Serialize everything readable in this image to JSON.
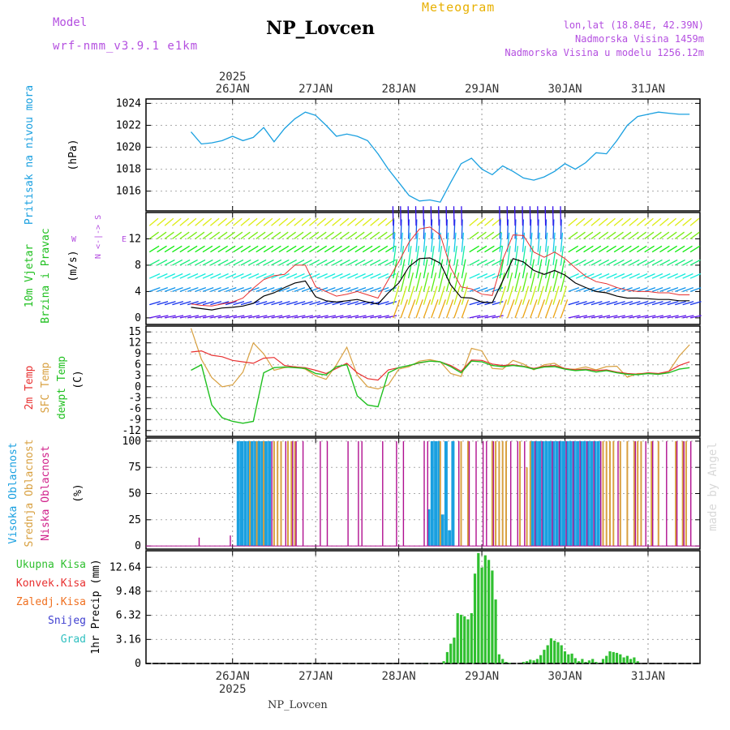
{
  "header": {
    "model_label": "Model",
    "model_name": "wrf-nmm_v3.9.1 e1km",
    "title": "NP_Lovcen",
    "subtitle": "Meteogram",
    "lonlat": "lon,lat (18.84E, 42.39N)",
    "altitude": "Nadmorska Visina 1459m",
    "model_altitude": "Nadmorska Visina u modelu 1256.12m",
    "footer_station": "NP_Lovcen",
    "credit": "made by Angel"
  },
  "colors": {
    "magenta": "#b44fe0",
    "orange": "#e8b000",
    "pressure": "#1aa0e0",
    "t2m": "#e83030",
    "sfc": "#d8a040",
    "dew": "#20c020",
    "precip": "#30c030",
    "axis": "#000000"
  },
  "chart_data": [
    {
      "type": "line",
      "ylabel": "Pritisak na nivou mora",
      "unit": "(hPa)",
      "yticks": [
        1016,
        1018,
        1020,
        1022,
        1024
      ],
      "ylim": [
        1014.2,
        1024.4
      ],
      "x_top_labels": [
        "26JAN",
        "27JAN",
        "28JAN",
        "29JAN",
        "30JAN",
        "31JAN"
      ],
      "year_label": "2025",
      "series": [
        {
          "hours": [
            0,
            3,
            6,
            9,
            12,
            15,
            18,
            21,
            24,
            27,
            30,
            33,
            36,
            39,
            42,
            45,
            48,
            51,
            54,
            57,
            60,
            63,
            66,
            69,
            72,
            75,
            78,
            81,
            84,
            87,
            90,
            93,
            96,
            99,
            102,
            105,
            108,
            111,
            114,
            117,
            120,
            123,
            126,
            129,
            132,
            135,
            138,
            141,
            144
          ],
          "values": [
            1021.4,
            1020.3,
            1020.4,
            1020.6,
            1021.0,
            1020.6,
            1020.9,
            1021.8,
            1020.5,
            1021.7,
            1022.6,
            1023.2,
            1022.9,
            1022.0,
            1021.0,
            1021.2,
            1021.0,
            1020.6,
            1019.4,
            1018.0,
            1016.8,
            1015.6,
            1015.1,
            1015.2,
            1015.0,
            1016.8,
            1018.5,
            1019.0,
            1018.0,
            1017.5,
            1018.3,
            1017.8,
            1017.2,
            1017.0,
            1017.3,
            1017.8,
            1018.5,
            1018.0,
            1018.6,
            1019.5,
            1019.4,
            1020.6,
            1022.0,
            1022.8,
            1023.0,
            1023.2,
            1023.1,
            1023.0,
            1023.0
          ]
        }
      ]
    },
    {
      "type": "line",
      "title": "10m Vjetar Brzina i Pravac",
      "ylabel_parts": [
        "10m Vjetar",
        "Brzina i Pravac"
      ],
      "unit": "(m/s)",
      "yticks": [
        0,
        4,
        8,
        12
      ],
      "ylim": [
        -1,
        16
      ],
      "direction_legend": "N <-|-> S",
      "direction_ends": [
        "W",
        "E"
      ],
      "series": [
        {
          "name": "mean",
          "hours": [
            0,
            3,
            6,
            9,
            12,
            15,
            18,
            21,
            24,
            27,
            30,
            33,
            36,
            39,
            42,
            45,
            48,
            51,
            54,
            57,
            60,
            63,
            66,
            69,
            72,
            75,
            78,
            81,
            84,
            87,
            90,
            93,
            96,
            99,
            102,
            105,
            108,
            111,
            114,
            117,
            120,
            123,
            126,
            129,
            132,
            135,
            138,
            141,
            144
          ],
          "values": [
            1.6,
            1.4,
            1.2,
            1.5,
            1.6,
            1.8,
            2.2,
            3.3,
            3.8,
            4.6,
            5.3,
            5.6,
            3.2,
            2.6,
            2.4,
            2.6,
            2.8,
            2.4,
            2.1,
            3.8,
            5.3,
            7.8,
            9.0,
            9.1,
            8.3,
            5.0,
            3.1,
            3.0,
            2.4,
            2.3,
            5.6,
            9.0,
            8.5,
            7.2,
            6.6,
            7.2,
            6.5,
            5.3,
            4.6,
            4.0,
            3.8,
            3.3,
            3.0,
            3.0,
            2.9,
            2.8,
            2.8,
            2.6,
            2.6
          ]
        },
        {
          "name": "gust",
          "hours": [
            0,
            3,
            6,
            9,
            12,
            15,
            18,
            21,
            24,
            27,
            30,
            33,
            36,
            39,
            42,
            45,
            48,
            51,
            54,
            57,
            60,
            63,
            66,
            69,
            72,
            75,
            78,
            81,
            84,
            87,
            90,
            93,
            96,
            99,
            102,
            105,
            108,
            111,
            114,
            117,
            120,
            123,
            126,
            129,
            132,
            135,
            138,
            141,
            144
          ],
          "values": [
            2.1,
            1.9,
            1.8,
            2.1,
            2.4,
            3.0,
            4.5,
            5.8,
            6.4,
            6.6,
            8.0,
            8.0,
            4.7,
            4.0,
            3.3,
            3.6,
            4.0,
            3.5,
            3.0,
            5.8,
            8.5,
            11.5,
            13.5,
            13.8,
            12.6,
            7.6,
            4.7,
            4.4,
            3.6,
            3.4,
            8.8,
            12.6,
            12.5,
            10.0,
            9.2,
            10.0,
            9.0,
            7.6,
            6.3,
            5.5,
            5.2,
            4.6,
            4.2,
            4.0,
            4.0,
            3.8,
            3.8,
            3.5,
            3.5
          ]
        }
      ]
    },
    {
      "type": "line",
      "ylabel_parts": [
        "2m Temp",
        "SFC Temp",
        "dewpt Temp"
      ],
      "unit": "(C)",
      "yticks": [
        -12,
        -9,
        -6,
        -3,
        0,
        3,
        6,
        9,
        12,
        15
      ],
      "ylim": [
        -13.6,
        16.6
      ],
      "series": [
        {
          "name": "2m Temp",
          "hours": [
            0,
            3,
            6,
            9,
            12,
            15,
            18,
            21,
            24,
            27,
            30,
            33,
            36,
            39,
            42,
            45,
            48,
            51,
            54,
            57,
            60,
            63,
            66,
            69,
            72,
            75,
            78,
            81,
            84,
            87,
            90,
            93,
            96,
            99,
            102,
            105,
            108,
            111,
            114,
            117,
            120,
            123,
            126,
            129,
            132,
            135,
            138,
            141,
            144
          ],
          "values": [
            9.5,
            9.8,
            8.6,
            8.2,
            7.2,
            6.8,
            6.4,
            7.8,
            8.0,
            5.8,
            5.4,
            5.2,
            4.5,
            3.6,
            5.0,
            6.4,
            3.8,
            2.2,
            1.8,
            4.6,
            5.2,
            5.8,
            6.5,
            7.0,
            6.8,
            5.8,
            4.2,
            7.3,
            7.2,
            6.2,
            5.8,
            6.0,
            5.6,
            5.0,
            5.6,
            5.8,
            5.0,
            4.6,
            4.8,
            4.4,
            4.6,
            4.0,
            3.6,
            3.4,
            3.8,
            3.6,
            4.2,
            5.8,
            6.8
          ]
        },
        {
          "name": "SFC Temp",
          "hours": [
            0,
            3,
            6,
            9,
            12,
            15,
            18,
            21,
            24,
            27,
            30,
            33,
            36,
            39,
            42,
            45,
            48,
            51,
            54,
            57,
            60,
            63,
            66,
            69,
            72,
            75,
            78,
            81,
            84,
            87,
            90,
            93,
            96,
            99,
            102,
            105,
            108,
            111,
            114,
            117,
            120,
            123,
            126,
            129,
            132,
            135,
            138,
            141,
            144
          ],
          "values": [
            16.0,
            7.5,
            2.5,
            0.0,
            0.5,
            4.0,
            12.0,
            9.0,
            4.5,
            5.2,
            5.5,
            4.8,
            3.0,
            2.0,
            6.0,
            10.8,
            3.2,
            0.0,
            -0.6,
            0.5,
            4.8,
            5.5,
            7.0,
            7.4,
            6.8,
            3.6,
            2.8,
            10.5,
            9.8,
            5.0,
            4.8,
            7.2,
            6.2,
            4.6,
            6.0,
            6.4,
            4.8,
            4.8,
            5.4,
            4.6,
            5.5,
            5.6,
            2.6,
            3.6,
            3.6,
            3.4,
            4.2,
            8.4,
            11.5
          ]
        },
        {
          "name": "dewpt Temp",
          "hours": [
            0,
            3,
            6,
            9,
            12,
            15,
            18,
            21,
            24,
            27,
            30,
            33,
            36,
            39,
            42,
            45,
            48,
            51,
            54,
            57,
            60,
            63,
            66,
            69,
            72,
            75,
            78,
            81,
            84,
            87,
            90,
            93,
            96,
            99,
            102,
            105,
            108,
            111,
            114,
            117,
            120,
            123,
            126,
            129,
            132,
            135,
            138,
            141,
            144
          ],
          "values": [
            4.5,
            6.0,
            -5.0,
            -8.5,
            -9.5,
            -10.0,
            -9.5,
            3.8,
            5.2,
            5.4,
            5.2,
            5.0,
            3.6,
            3.2,
            5.5,
            6.0,
            -2.5,
            -5.0,
            -5.5,
            3.8,
            5.2,
            5.8,
            6.6,
            7.0,
            6.8,
            5.5,
            3.8,
            7.0,
            6.8,
            5.8,
            5.5,
            5.8,
            5.5,
            4.8,
            5.4,
            5.5,
            4.8,
            4.4,
            4.6,
            4.0,
            4.4,
            3.8,
            3.4,
            3.3,
            3.6,
            3.4,
            3.8,
            4.8,
            5.2
          ]
        }
      ]
    },
    {
      "type": "bar",
      "ylabel_parts": [
        "Visoka Oblacnost",
        "Srednja Oblacnost",
        "Niska Oblacnost"
      ],
      "unit": "(%)",
      "yticks": [
        0,
        25,
        50,
        75,
        100
      ],
      "ylim": [
        -3,
        103
      ],
      "series": [
        {
          "name": "Visoka Oblacnost",
          "hours": [
            14,
            15,
            16,
            17,
            18,
            19,
            20,
            21,
            22,
            23,
            69,
            70,
            71,
            72,
            73,
            74,
            75,
            76,
            99,
            100,
            101,
            102,
            103,
            104,
            105,
            106,
            107,
            108,
            109,
            110,
            111,
            112,
            113,
            114,
            115,
            116,
            117,
            118
          ],
          "values": [
            100,
            100,
            100,
            100,
            100,
            100,
            100,
            100,
            100,
            100,
            35,
            100,
            100,
            100,
            30,
            100,
            15,
            100,
            100,
            100,
            100,
            100,
            100,
            100,
            100,
            100,
            100,
            100,
            100,
            100,
            100,
            100,
            100,
            100,
            100,
            100,
            100,
            100
          ]
        },
        {
          "name": "Srednja Oblacnost",
          "hours": [
            17,
            19,
            21,
            24,
            25,
            26,
            28,
            29,
            30,
            72,
            78,
            80,
            87,
            88,
            89,
            90,
            91,
            95,
            97,
            98,
            119,
            120,
            121,
            122,
            124,
            126,
            128,
            129,
            130,
            133,
            135,
            140,
            142,
            143
          ],
          "values": [
            100,
            100,
            100,
            100,
            100,
            100,
            100,
            100,
            100,
            100,
            100,
            100,
            100,
            100,
            100,
            100,
            100,
            100,
            75,
            100,
            100,
            100,
            100,
            100,
            100,
            100,
            100,
            100,
            100,
            100,
            100,
            100,
            100,
            100
          ]
        },
        {
          "name": "Niska Oblacnost",
          "hours": [
            2,
            11,
            23,
            27,
            29,
            30,
            32,
            37,
            39,
            45,
            48,
            49,
            55,
            59,
            61,
            67,
            68,
            77,
            80,
            82,
            84,
            85,
            87,
            92,
            94,
            96,
            99,
            101,
            104,
            106,
            108,
            110,
            112,
            114,
            116,
            118,
            123,
            128,
            131,
            133,
            137,
            140,
            142,
            144
          ],
          "values": [
            8,
            10,
            100,
            100,
            100,
            100,
            100,
            100,
            100,
            100,
            100,
            100,
            100,
            100,
            100,
            100,
            100,
            100,
            100,
            100,
            100,
            100,
            100,
            100,
            100,
            100,
            100,
            100,
            100,
            100,
            100,
            100,
            100,
            100,
            100,
            100,
            100,
            100,
            100,
            100,
            100,
            100,
            100,
            100
          ]
        }
      ]
    },
    {
      "type": "bar",
      "ylabel": "1hr Precip",
      "unit": "(mm)",
      "ytick_labels": [
        "0",
        "3.16",
        "6.32",
        "9.48",
        "12.64"
      ],
      "yticks": [
        0,
        3.16,
        6.32,
        9.48,
        12.64
      ],
      "ylim": [
        0,
        14.8
      ],
      "legend": [
        "Ukupna Kisa",
        "Konvek.Kisa",
        "Zaledj.Kisa",
        "Snijeg",
        "Grad"
      ],
      "x_bottom_labels": [
        "26JAN",
        "27JAN",
        "28JAN",
        "29JAN",
        "30JAN",
        "31JAN"
      ],
      "year_label": "2025",
      "series": [
        {
          "name": "Ukupna Kisa",
          "hours": [
            34,
            68,
            73,
            74,
            75,
            76,
            77,
            78,
            79,
            80,
            81,
            82,
            83,
            84,
            85,
            86,
            87,
            88,
            89,
            90,
            91,
            92,
            96,
            97,
            98,
            99,
            100,
            101,
            102,
            103,
            104,
            105,
            106,
            107,
            108,
            109,
            110,
            111,
            112,
            113,
            114,
            115,
            116,
            117,
            118,
            119,
            120,
            121,
            122,
            123,
            124,
            125,
            126,
            127,
            128,
            129
          ],
          "values": [
            0.1,
            0.1,
            0.3,
            1.5,
            2.6,
            3.4,
            6.6,
            6.4,
            6.2,
            5.8,
            6.6,
            11.8,
            14.5,
            12.6,
            14.2,
            13.6,
            12.2,
            8.4,
            1.2,
            0.6,
            0.2,
            0.1,
            0.2,
            0.3,
            0.5,
            0.4,
            0.6,
            1.1,
            1.8,
            2.4,
            3.3,
            3.0,
            2.8,
            2.4,
            1.6,
            1.2,
            1.3,
            0.7,
            0.3,
            0.6,
            0.2,
            0.4,
            0.6,
            0.2,
            0.1,
            0.6,
            1.0,
            1.6,
            1.5,
            1.4,
            1.2,
            0.8,
            1.0,
            0.6,
            0.8,
            0.3
          ]
        }
      ]
    }
  ]
}
